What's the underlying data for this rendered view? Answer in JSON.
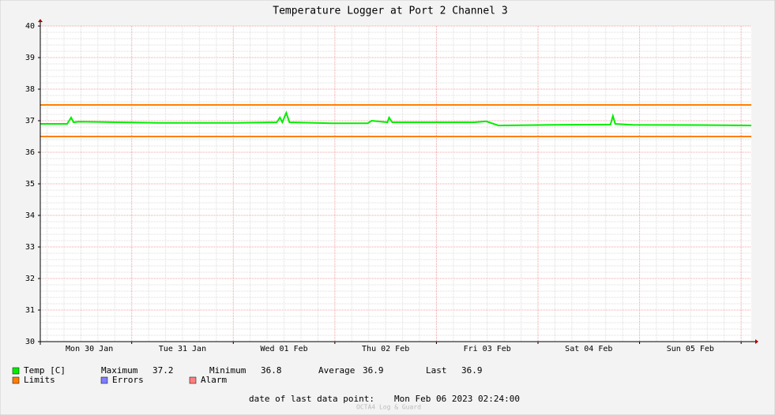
{
  "chart_data": {
    "type": "line",
    "title": "Temperature Logger at Port 2 Channel 3",
    "xlim": [
      "2023-01-30T02:24",
      "2023-02-06T02:24"
    ],
    "xgrid": [
      "2023-01-31T00:00",
      "2023-02-01T00:00",
      "2023-02-02T00:00",
      "2023-02-03T00:00",
      "2023-02-04T00:00",
      "2023-02-05T00:00",
      "2023-02-06T00:00"
    ],
    "xticks": [
      {
        "value": "2023-01-30T14:00",
        "label": "Mon 30 Jan"
      },
      {
        "value": "2023-01-31T12:00",
        "label": "Tue 31 Jan"
      },
      {
        "value": "2023-02-01T12:00",
        "label": "Wed 01 Feb"
      },
      {
        "value": "2023-02-02T12:00",
        "label": "Thu 02 Feb"
      },
      {
        "value": "2023-02-03T12:00",
        "label": "Fri 03 Feb"
      },
      {
        "value": "2023-02-04T12:00",
        "label": "Sat 04 Feb"
      },
      {
        "value": "2023-02-05T12:00",
        "label": "Sun 05 Feb"
      }
    ],
    "ylim": [
      30,
      40
    ],
    "yticks": [
      30,
      31,
      32,
      33,
      34,
      35,
      36,
      37,
      38,
      39,
      40
    ],
    "grid": true,
    "x": [
      "2023-01-30T02:24",
      "2023-01-30T08:45",
      "2023-01-30T09:41",
      "2023-01-30T10:15",
      "2023-01-30T11:34",
      "2023-01-31T06:14",
      "2023-02-01T00:56",
      "2023-02-01T10:16",
      "2023-02-01T11:01",
      "2023-02-01T11:35",
      "2023-02-01T12:31",
      "2023-02-01T13:16",
      "2023-02-01T23:22",
      "2023-02-02T07:46",
      "2023-02-02T08:42",
      "2023-02-02T12:26",
      "2023-02-02T12:49",
      "2023-02-02T13:34",
      "2023-02-02T18:02",
      "2023-02-03T08:59",
      "2023-02-03T11:47",
      "2023-02-03T14:36",
      "2023-02-04T03:41",
      "2023-02-04T17:08",
      "2023-02-04T17:42",
      "2023-02-04T18:15",
      "2023-02-04T22:22",
      "2023-02-05T17:03",
      "2023-02-06T02:24"
    ],
    "series": [
      {
        "name": "Temp [C]",
        "color": "#00ee00",
        "values": [
          36.9,
          36.9,
          37.1,
          36.95,
          36.97,
          36.93,
          36.93,
          36.95,
          37.1,
          36.95,
          37.25,
          36.95,
          36.92,
          36.92,
          37.0,
          36.95,
          37.1,
          36.95,
          36.95,
          36.95,
          36.98,
          36.85,
          36.87,
          36.88,
          37.15,
          36.9,
          36.87,
          36.86,
          36.85
        ]
      }
    ],
    "limits": {
      "name": "Limits",
      "color": "#ff7f00",
      "values": [
        37.5,
        36.5
      ]
    },
    "legend_extra": [
      {
        "name": "Errors",
        "color": "#7f7fff"
      },
      {
        "name": "Alarm",
        "color": "#ff7f7f"
      }
    ],
    "stats": [
      {
        "label": "Maximum",
        "value": 37.2
      },
      {
        "label": "Minimum",
        "value": 36.8
      },
      {
        "label": "Average",
        "value": 36.9
      },
      {
        "label": "Last",
        "value": 36.9
      }
    ],
    "footer_label": "date of last data point:",
    "footer_value": "Mon Feb 06 2023 02:24:00",
    "watermark": "OCTA4 Log & Guard"
  }
}
